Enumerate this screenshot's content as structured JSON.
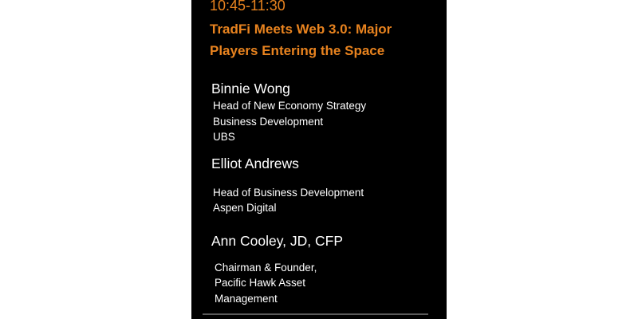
{
  "session": {
    "time": "10:45-11:30",
    "title": "TradFi Meets Web 3.0: Major Players Entering the Space"
  },
  "speakers": [
    {
      "name": "Binnie Wong",
      "lines": [
        "Head of New Economy Strategy",
        "Business Development",
        "UBS"
      ]
    },
    {
      "name": "Elliot Andrews",
      "lines": [
        "Head of Business Development",
        "Aspen Digital"
      ]
    },
    {
      "name": "Ann Cooley, JD, CFP",
      "lines": [
        "Chairman & Founder,",
        "Pacific Hawk Asset",
        "Management"
      ]
    }
  ],
  "colors": {
    "accent": "#e8831f",
    "panel_background": "#000000",
    "text": "#ffffff"
  }
}
